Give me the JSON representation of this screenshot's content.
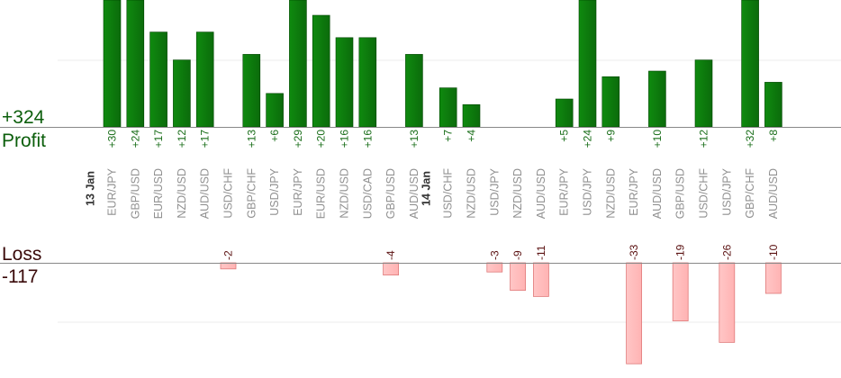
{
  "chart_data": {
    "type": "bar",
    "profit_total_label": "+324",
    "profit_label": "Profit",
    "loss_label": "Loss",
    "loss_total_label": "-117",
    "day_labels": [
      {
        "before_index": 0,
        "text": "13 Jan"
      },
      {
        "before_index": 14,
        "text": "14 Jan"
      }
    ],
    "categories": [
      "EUR/JPY",
      "GBP/USD",
      "EUR/USD",
      "NZD/USD",
      "AUD/USD",
      "USD/CHF",
      "GBP/CHF",
      "USD/JPY",
      "EUR/JPY",
      "EUR/USD",
      "NZD/USD",
      "USD/CAD",
      "GBP/USD",
      "AUD/USD",
      "USD/CHF",
      "NZD/USD",
      "USD/JPY",
      "NZD/USD",
      "AUD/USD",
      "EUR/JPY",
      "USD/JPY",
      "NZD/USD",
      "EUR/JPY",
      "AUD/USD",
      "GBP/USD",
      "USD/CHF",
      "USD/JPY",
      "GBP/CHF",
      "AUD/USD"
    ],
    "series": [
      {
        "values": [
          30,
          24,
          17,
          12,
          17,
          null,
          13,
          6,
          29,
          20,
          16,
          16,
          null,
          13,
          7,
          4,
          null,
          null,
          null,
          5,
          24,
          9,
          null,
          10,
          null,
          12,
          null,
          32,
          8
        ],
        "labels": [
          "+30",
          "+24",
          "+17",
          "+12",
          "+17",
          "",
          "+13",
          "+6",
          "+29",
          "+20",
          "+16",
          "+16",
          "",
          "+13",
          "+7",
          "+4",
          "",
          "",
          "",
          "+5",
          "+24",
          "+9",
          "",
          "+10",
          "",
          "+12",
          "",
          "+32",
          "+8"
        ]
      },
      {
        "values": [
          null,
          null,
          null,
          null,
          null,
          -2,
          null,
          null,
          null,
          null,
          null,
          null,
          -4,
          null,
          null,
          null,
          -3,
          -9,
          -11,
          null,
          null,
          null,
          -33,
          null,
          -19,
          null,
          -26,
          null,
          -10
        ],
        "labels": [
          "",
          "",
          "",
          "",
          "",
          "-2",
          "",
          "",
          "",
          "",
          "",
          "",
          "-4",
          "",
          "",
          "",
          "-3",
          "-9",
          "-11",
          "",
          "",
          "",
          "-33",
          "",
          "-19",
          "",
          "-26",
          "",
          "-10"
        ]
      }
    ],
    "colors": {
      "profit_fill": "#0b6b0b",
      "profit_edge": "#004400",
      "profit_text": "#1a6e1a",
      "loss_fill": "#ffb3b3",
      "loss_edge": "#e07a7a",
      "loss_text": "#5a1010",
      "total_profit_text": "#0b5e0b",
      "total_loss_text": "#3a0a0a",
      "axis": "#888888",
      "grid": "#ececec"
    },
    "grid": true
  }
}
